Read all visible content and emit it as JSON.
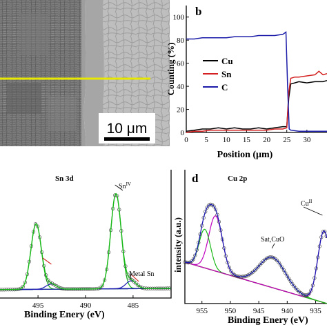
{
  "panel_a": {
    "scale_bar": "10 μm"
  },
  "panel_b": {
    "letter": "b",
    "ylabel": "Counting (%)",
    "xlabel": "Position (μm)",
    "legend": [
      "Cu",
      "Sn",
      "C"
    ]
  },
  "panel_c": {
    "title": "Sn 3d",
    "xlabel": "Binding Enery (eV)",
    "ann_sniv": "Sn",
    "ann_sniv_sup": "IV",
    "ann_metal": "Metal Sn"
  },
  "panel_d": {
    "letter": "d",
    "title": "Cu 2p",
    "ylabel": "intensity (a.u.)",
    "xlabel": "Binding Enery (eV)",
    "ann_cu": "Cu",
    "ann_cu_sup": "II",
    "ann_sat": "Sat,CuO"
  },
  "colors": {
    "cu": "#000000",
    "sn": "#d42020",
    "c": "#1a1aa8",
    "fit_green": "#18b818",
    "component_magenta": "#c000c0",
    "background_blue": "#1a1ab0",
    "background_red": "#c02020",
    "scan_line": "#e8e800"
  },
  "chart_data": [
    {
      "type": "line",
      "panel": "b",
      "xlabel": "Position (μm)",
      "ylabel": "Counting (%)",
      "xlim": [
        0,
        35
      ],
      "ylim": [
        0,
        110
      ],
      "x_ticks": [
        0,
        5,
        10,
        15,
        20,
        25,
        30
      ],
      "y_ticks": [
        0,
        20,
        40,
        60,
        80,
        100
      ],
      "legend_position": "center-left",
      "grid": false,
      "series": [
        {
          "name": "Cu",
          "color": "#000000",
          "x": [
            0,
            2,
            4,
            6,
            8,
            10,
            12,
            14,
            16,
            18,
            20,
            22,
            24,
            25,
            25.5,
            26,
            27,
            28,
            30,
            32,
            34,
            35
          ],
          "y": [
            1,
            2,
            3,
            3,
            4,
            3,
            4,
            3,
            3,
            4,
            3,
            4,
            5,
            5,
            30,
            42,
            43,
            44,
            43,
            44,
            44,
            45
          ]
        },
        {
          "name": "Sn",
          "color": "#d42020",
          "x": [
            0,
            2,
            4,
            6,
            8,
            10,
            12,
            14,
            16,
            18,
            20,
            22,
            24,
            25,
            25.5,
            26,
            27,
            28,
            30,
            32,
            33,
            34,
            35
          ],
          "y": [
            0,
            1,
            1,
            2,
            2,
            2,
            2,
            2,
            2,
            2,
            2,
            3,
            3,
            4,
            35,
            47,
            48,
            48,
            49,
            50,
            53,
            50,
            51
          ]
        },
        {
          "name": "C",
          "color": "#1a1aa8",
          "x": [
            0,
            2,
            4,
            6,
            8,
            10,
            12,
            14,
            16,
            18,
            20,
            22,
            24,
            24.8,
            25.2,
            25.6,
            26,
            28,
            30,
            32,
            35
          ],
          "y": [
            81,
            81,
            82,
            82,
            82,
            82,
            83,
            83,
            83,
            84,
            84,
            84,
            85,
            87,
            40,
            3,
            2,
            1,
            1,
            1,
            1
          ]
        }
      ]
    },
    {
      "type": "line",
      "panel": "c",
      "title": "Sn 3d",
      "xlabel": "Binding Enery (eV)",
      "x_reversed": true,
      "xlim": [
        499,
        481
      ],
      "x_ticks": [
        495,
        490,
        485
      ],
      "peaks": [
        {
          "label": "Sn 3d3/2 (SnIV)",
          "center": 495.2,
          "height": 1.0
        },
        {
          "label": "Sn 3d5/2 (SnIV)",
          "center": 486.8,
          "height": 1.45
        },
        {
          "label": "Metal Sn 3d3/2",
          "center": 493.6,
          "height": 0.08
        },
        {
          "label": "Metal Sn 3d5/2",
          "center": 485.2,
          "height": 0.12
        }
      ]
    },
    {
      "type": "line",
      "panel": "d",
      "title": "Cu 2p",
      "xlabel": "Binding Enery (eV)",
      "ylabel": "intensity (a.u.)",
      "x_reversed": true,
      "xlim": [
        958,
        933
      ],
      "x_ticks": [
        955,
        950,
        945,
        940,
        935
      ],
      "peaks": [
        {
          "label": "Cu 2p1/2",
          "center": 952.6,
          "height": 1.0
        },
        {
          "label": "Cu 2p1/2 shoulder",
          "center": 954.5,
          "height": 0.7
        },
        {
          "label": "Sat,CuO",
          "center": 942.6,
          "height": 0.55
        },
        {
          "label": "Cu 2p3/2 (CuII)",
          "center": 933.5,
          "height": 1.3
        }
      ]
    }
  ]
}
